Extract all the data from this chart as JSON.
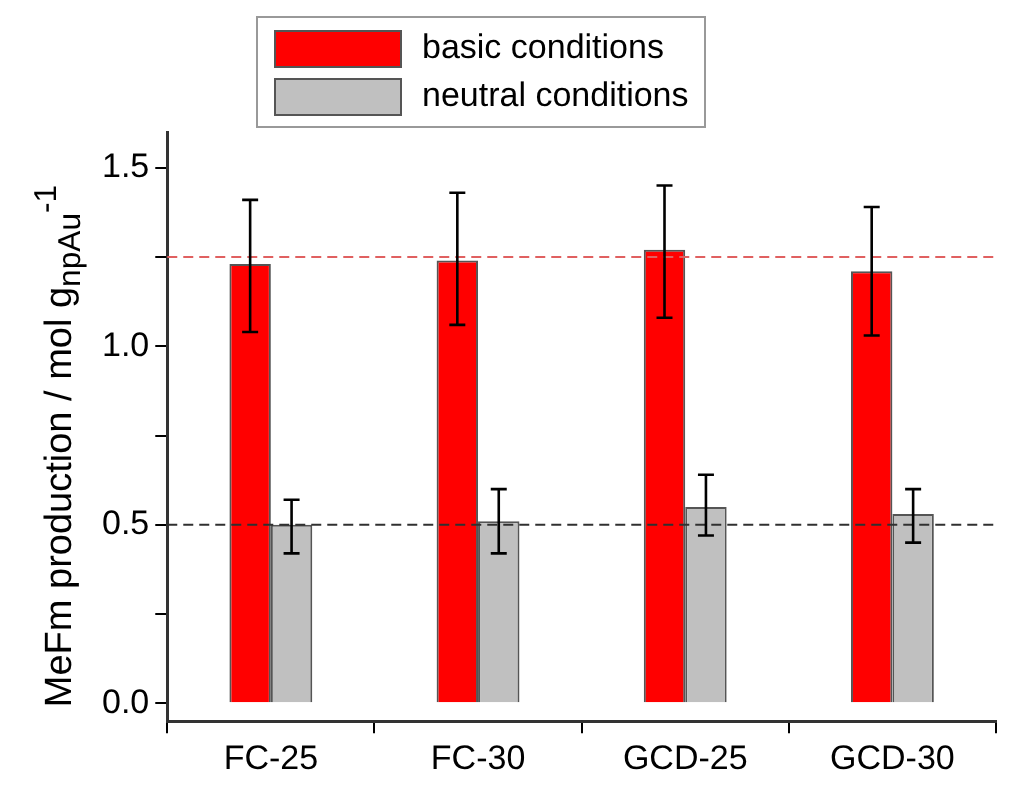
{
  "chart_data": {
    "type": "bar",
    "ylabel": "MeFm production / mol g$_{npAu}$$^{-1}$",
    "categories": [
      "FC-25",
      "FC-30",
      "GCD-25",
      "GCD-30"
    ],
    "series": [
      {
        "name": "basic conditions",
        "color": "#ff0000",
        "values": [
          1.23,
          1.24,
          1.27,
          1.21
        ],
        "errors": [
          [
            1.04,
            1.41
          ],
          [
            1.06,
            1.43
          ],
          [
            1.08,
            1.45
          ],
          [
            1.03,
            1.39
          ]
        ]
      },
      {
        "name": "neutral conditions",
        "color": "#c0c0c0",
        "values": [
          0.5,
          0.51,
          0.55,
          0.53
        ],
        "errors": [
          [
            0.42,
            0.57
          ],
          [
            0.42,
            0.6
          ],
          [
            0.47,
            0.64
          ],
          [
            0.45,
            0.6
          ]
        ]
      }
    ],
    "ylim": [
      -0.05,
      1.6
    ],
    "yticks": [
      {
        "value": 0,
        "label": "0.0"
      },
      {
        "value": 0.25,
        "label": null
      },
      {
        "value": 0.5,
        "label": "0.5"
      },
      {
        "value": 0.75,
        "label": null
      },
      {
        "value": 1,
        "label": "1.0"
      },
      {
        "value": 1.25,
        "label": null
      },
      {
        "value": 1.5,
        "label": "1.5"
      }
    ],
    "ref_lines": [
      {
        "axis": "y",
        "value": 1.25,
        "color": "#e06060",
        "line_style": "dashed"
      },
      {
        "axis": "y",
        "value": 0.5,
        "color": "#303030",
        "line_style": "dashed"
      }
    ],
    "legend": "top left",
    "grid": false
  }
}
